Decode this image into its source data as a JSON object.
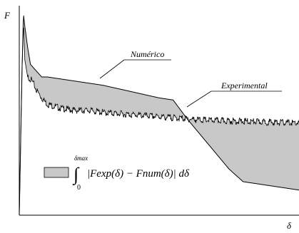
{
  "chart_data": {
    "type": "line",
    "xlabel": "δ",
    "ylabel": "F",
    "xlim": [
      0,
      100
    ],
    "ylim": [
      0,
      100
    ],
    "grid": false,
    "series": [
      {
        "name": "Numérico",
        "x": [
          0,
          1,
          1.5,
          2,
          3,
          4,
          6,
          8,
          10,
          20,
          30,
          40,
          45,
          50,
          55,
          60,
          65,
          70,
          75,
          80,
          85,
          90,
          95,
          100
        ],
        "y": [
          0,
          70,
          96,
          90,
          80,
          72,
          69,
          66,
          66,
          64,
          62,
          59,
          57.5,
          56,
          55,
          46,
          38,
          30,
          22,
          16,
          15,
          14,
          13,
          12
        ]
      },
      {
        "name": "Experimental",
        "x": [
          0,
          1,
          1.5,
          2,
          3,
          4,
          5,
          6,
          8,
          10,
          15,
          20,
          25,
          30,
          35,
          40,
          45,
          50,
          55,
          60,
          65,
          70,
          75,
          80,
          85,
          90,
          95,
          100
        ],
        "y": [
          0,
          70,
          92,
          74,
          66,
          65,
          63,
          60,
          56,
          53,
          51,
          50,
          50,
          49,
          48.5,
          48,
          47.5,
          47,
          46.5,
          46,
          45.5,
          45.2,
          45,
          44.8,
          44.6,
          44.4,
          44.2,
          44
        ]
      }
    ],
    "annotations": [
      {
        "text": "Numérico"
      },
      {
        "text": "Experimental"
      }
    ],
    "legend": {
      "integral_lower": "0",
      "integral_upper": "δmax",
      "integral_sign": "∫",
      "expression": "|Fexp(δ) − Fnum(δ)| dδ"
    }
  }
}
